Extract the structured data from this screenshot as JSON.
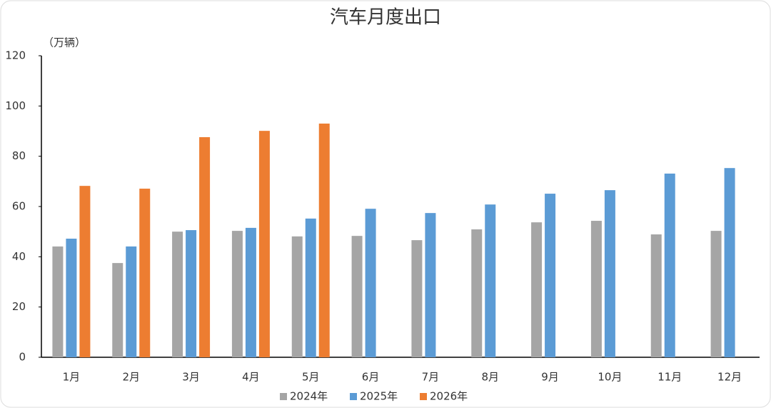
{
  "chart_data": {
    "type": "bar",
    "title": "汽车月度出口",
    "y_unit": "（万辆）",
    "categories": [
      "1月",
      "2月",
      "3月",
      "4月",
      "5月",
      "6月",
      "7月",
      "8月",
      "9月",
      "10月",
      "11月",
      "12月"
    ],
    "series": [
      {
        "name": "2024年",
        "color": "#a5a5a5",
        "values": [
          44.1,
          37.5,
          50.0,
          50.3,
          48.1,
          48.3,
          46.6,
          50.9,
          53.7,
          54.3,
          48.9,
          50.3
        ]
      },
      {
        "name": "2025年",
        "color": "#5b9bd5",
        "values": [
          47.2,
          44.1,
          50.6,
          51.5,
          55.2,
          59.1,
          57.4,
          60.8,
          65.1,
          66.5,
          73.1,
          75.3
        ]
      },
      {
        "name": "2026年",
        "color": "#ed7d31",
        "values": [
          68.2,
          67.1,
          87.6,
          90.1,
          93.0,
          null,
          null,
          null,
          null,
          null,
          null,
          null
        ]
      }
    ],
    "ylim": [
      0,
      120
    ],
    "yticks": [
      0,
      20,
      40,
      60,
      80,
      100,
      120
    ],
    "grid": false,
    "legend": "bottom"
  }
}
